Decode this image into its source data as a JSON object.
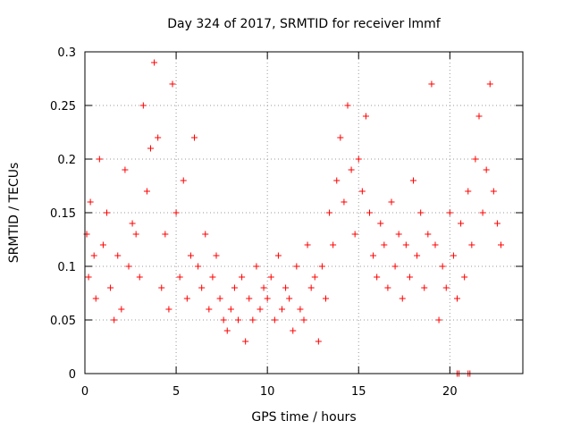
{
  "chart_data": {
    "type": "scatter",
    "title": "Day 324 of 2017, SRMTID for receiver lmmf",
    "xlabel": "GPS time / hours",
    "ylabel": "SRMTID / TECUs",
    "xlim": [
      0,
      24
    ],
    "ylim": [
      0,
      0.3
    ],
    "xticks": [
      0,
      5,
      10,
      15,
      20
    ],
    "yticks": [
      0,
      0.05,
      0.1,
      0.15,
      0.2,
      0.25,
      0.3
    ],
    "xtick_labels": [
      "0",
      "5",
      "10",
      "15",
      "20"
    ],
    "ytick_labels": [
      "0",
      "0.05",
      "0.1",
      "0.15",
      "0.2",
      "0.25",
      "0.3"
    ],
    "grid": true,
    "marker": "+",
    "marker_color": "#ff0000",
    "series": [
      {
        "name": "SRMTID",
        "x": [
          0.1,
          0.2,
          0.3,
          0.5,
          0.6,
          0.8,
          1.0,
          1.2,
          1.4,
          1.6,
          1.8,
          2.0,
          2.2,
          2.4,
          2.6,
          2.8,
          3.0,
          3.2,
          3.4,
          3.6,
          3.8,
          4.0,
          4.2,
          4.4,
          4.6,
          4.8,
          5.0,
          5.2,
          5.4,
          5.6,
          5.8,
          6.0,
          6.2,
          6.4,
          6.6,
          6.8,
          7.0,
          7.2,
          7.4,
          7.6,
          7.8,
          8.0,
          8.2,
          8.4,
          8.6,
          8.8,
          9.0,
          9.2,
          9.4,
          9.6,
          9.8,
          10.0,
          10.2,
          10.4,
          10.6,
          10.8,
          11.0,
          11.2,
          11.4,
          11.6,
          11.8,
          12.0,
          12.2,
          12.4,
          12.6,
          12.8,
          13.0,
          13.2,
          13.4,
          13.6,
          13.8,
          14.0,
          14.2,
          14.4,
          14.6,
          14.8,
          15.0,
          15.2,
          15.4,
          15.6,
          15.8,
          16.0,
          16.2,
          16.4,
          16.6,
          16.8,
          17.0,
          17.2,
          17.4,
          17.6,
          17.8,
          18.0,
          18.2,
          18.4,
          18.6,
          18.8,
          19.0,
          19.2,
          19.4,
          19.6,
          19.8,
          20.0,
          20.2,
          20.4,
          20.6,
          20.8,
          21.0,
          21.2,
          21.4,
          21.6,
          21.8,
          22.0,
          22.2,
          22.4,
          22.6,
          22.8,
          20.4,
          20.5,
          21.0,
          21.1
        ],
        "y": [
          0.13,
          0.09,
          0.16,
          0.11,
          0.07,
          0.2,
          0.12,
          0.15,
          0.08,
          0.05,
          0.11,
          0.06,
          0.19,
          0.1,
          0.14,
          0.13,
          0.09,
          0.25,
          0.17,
          0.21,
          0.29,
          0.22,
          0.08,
          0.13,
          0.06,
          0.27,
          0.15,
          0.09,
          0.18,
          0.07,
          0.11,
          0.22,
          0.1,
          0.08,
          0.13,
          0.06,
          0.09,
          0.11,
          0.07,
          0.05,
          0.04,
          0.06,
          0.08,
          0.05,
          0.09,
          0.03,
          0.07,
          0.05,
          0.1,
          0.06,
          0.08,
          0.07,
          0.09,
          0.05,
          0.11,
          0.06,
          0.08,
          0.07,
          0.04,
          0.1,
          0.06,
          0.05,
          0.12,
          0.08,
          0.09,
          0.03,
          0.1,
          0.07,
          0.15,
          0.12,
          0.18,
          0.22,
          0.16,
          0.25,
          0.19,
          0.13,
          0.2,
          0.17,
          0.24,
          0.15,
          0.11,
          0.09,
          0.14,
          0.12,
          0.08,
          0.16,
          0.1,
          0.13,
          0.07,
          0.12,
          0.09,
          0.18,
          0.11,
          0.15,
          0.08,
          0.13,
          0.27,
          0.12,
          0.05,
          0.1,
          0.08,
          0.15,
          0.11,
          0.07,
          0.14,
          0.09,
          0.17,
          0.12,
          0.2,
          0.24,
          0.15,
          0.19,
          0.27,
          0.17,
          0.14,
          0.12,
          0.0,
          0.0,
          0.0,
          0.0
        ]
      }
    ]
  }
}
